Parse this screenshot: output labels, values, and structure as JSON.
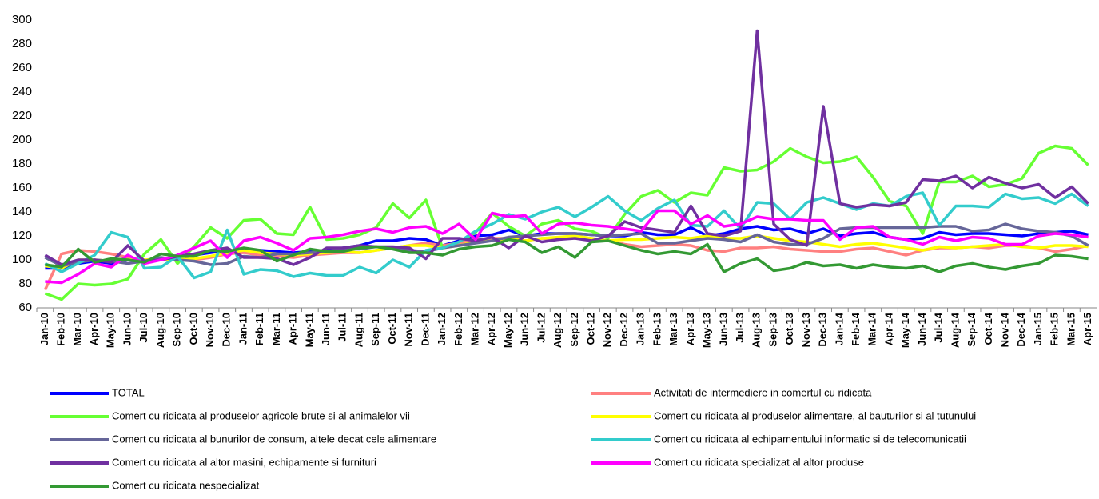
{
  "chart_data": {
    "type": "line",
    "categories": [
      "Jan-10",
      "Feb-10",
      "Mar-10",
      "Apr-10",
      "May-10",
      "Jun-10",
      "Jul-10",
      "Aug-10",
      "Sep-10",
      "Oct-10",
      "Nov-10",
      "Dec-10",
      "Jan-11",
      "Feb-11",
      "Mar-11",
      "Apr-11",
      "May-11",
      "Jun-11",
      "Jul-11",
      "Aug-11",
      "Sep-11",
      "Oct-11",
      "Nov-11",
      "Dec-11",
      "Jan-12",
      "Feb-12",
      "Mar-12",
      "Apr-12",
      "May-12",
      "Jun-12",
      "Jul-12",
      "Aug-12",
      "Sep-12",
      "Oct-12",
      "Nov-12",
      "Dec-12",
      "Jan-13",
      "Feb-13",
      "Mar-13",
      "Apr-13",
      "May-13",
      "Jun-13",
      "Jul-13",
      "Aug-13",
      "Sep-13",
      "Oct-13",
      "Nov-13",
      "Dec-13",
      "Jan-14",
      "Feb-14",
      "Mar-14",
      "Apr-14",
      "May-14",
      "Jun-14",
      "Jul-14",
      "Aug-14",
      "Sep-14",
      "Oct-14",
      "Nov-14",
      "Dec-14",
      "Jan-15",
      "Feb-15",
      "Mar-15",
      "Apr-15"
    ],
    "series": [
      {
        "name": "TOTAL",
        "color": "#0000ff",
        "values": [
          93,
          93,
          97,
          99,
          97,
          100,
          99,
          101,
          101,
          104,
          106,
          108,
          107,
          108,
          107,
          106,
          107,
          108,
          110,
          112,
          116,
          116,
          118,
          117,
          112,
          116,
          120,
          121,
          125,
          120,
          122,
          122,
          122,
          121,
          120,
          120,
          123,
          121,
          121,
          127,
          120,
          122,
          126,
          128,
          125,
          126,
          122,
          126,
          120,
          122,
          123,
          119,
          117,
          118,
          123,
          121,
          122,
          122,
          121,
          120,
          122,
          123,
          124,
          121
        ]
      },
      {
        "name": "Activitati de intermediere in comertul cu ridicata",
        "color": "#ff8080",
        "values": [
          75,
          105,
          108,
          107,
          105,
          102,
          100,
          100,
          100,
          100,
          102,
          105,
          106,
          104,
          103,
          102,
          104,
          105,
          106,
          106,
          108,
          110,
          112,
          114,
          112,
          114,
          117,
          118,
          118,
          116,
          118,
          117,
          119,
          117,
          116,
          113,
          111,
          112,
          113,
          112,
          108,
          107,
          110,
          110,
          111,
          109,
          108,
          107,
          107,
          109,
          110,
          107,
          104,
          108,
          110,
          110,
          111,
          110,
          112,
          112,
          110,
          107,
          109,
          112
        ]
      },
      {
        "name": "Comert cu ridicata al produselor agricole brute si al animalelor vii",
        "color": "#66ff33",
        "values": [
          72,
          67,
          80,
          79,
          80,
          84,
          105,
          117,
          97,
          111,
          127,
          118,
          133,
          134,
          122,
          121,
          144,
          117,
          118,
          121,
          127,
          147,
          135,
          150,
          110,
          115,
          123,
          139,
          128,
          120,
          130,
          133,
          126,
          124,
          118,
          138,
          153,
          158,
          148,
          156,
          154,
          177,
          174,
          175,
          182,
          193,
          186,
          181,
          182,
          186,
          169,
          149,
          145,
          122,
          165,
          165,
          170,
          161,
          163,
          168,
          189,
          195,
          193,
          179
        ]
      },
      {
        "name": "Comert cu ridicata al produselor alimentare, al bauturilor si al tutunului",
        "color": "#ffff00",
        "values": [
          95,
          93,
          100,
          100,
          99,
          100,
          100,
          101,
          100,
          101,
          103,
          106,
          108,
          106,
          105,
          104,
          105,
          106,
          107,
          106,
          108,
          110,
          112,
          112,
          110,
          112,
          115,
          116,
          118,
          116,
          118,
          119,
          120,
          118,
          116,
          117,
          117,
          118,
          119,
          118,
          120,
          118,
          118,
          120,
          118,
          116,
          115,
          113,
          111,
          113,
          114,
          112,
          110,
          108,
          111,
          110,
          111,
          112,
          113,
          111,
          110,
          112,
          112,
          111
        ]
      },
      {
        "name": "Comert cu ridicata al bunurilor de consum, altele decat cele alimentare",
        "color": "#666699",
        "values": [
          102,
          95,
          98,
          100,
          99,
          97,
          99,
          102,
          100,
          99,
          96,
          97,
          103,
          102,
          105,
          105,
          106,
          107,
          109,
          109,
          111,
          110,
          108,
          107,
          110,
          112,
          114,
          116,
          119,
          120,
          121,
          122,
          122,
          121,
          120,
          121,
          122,
          114,
          114,
          116,
          118,
          117,
          115,
          121,
          115,
          113,
          113,
          118,
          126,
          127,
          127,
          127,
          127,
          127,
          128,
          128,
          124,
          125,
          130,
          126,
          124,
          123,
          120,
          112
        ]
      },
      {
        "name": "Comert cu ridicata al echipamentului informatic si de telecomunicatii",
        "color": "#33cccc",
        "values": [
          97,
          90,
          97,
          104,
          123,
          119,
          93,
          94,
          103,
          85,
          90,
          125,
          88,
          92,
          91,
          86,
          89,
          87,
          87,
          94,
          89,
          100,
          94,
          108,
          110,
          115,
          124,
          130,
          138,
          134,
          140,
          144,
          136,
          144,
          153,
          141,
          133,
          143,
          150,
          129,
          128,
          141,
          126,
          148,
          147,
          134,
          148,
          152,
          147,
          142,
          147,
          145,
          153,
          156,
          129,
          145,
          145,
          144,
          155,
          151,
          152,
          147,
          155,
          145
        ]
      },
      {
        "name": "Comert cu ridicata al altor masini, echipamente si furnituri",
        "color": "#7030a0",
        "values": [
          104,
          96,
          100,
          100,
          98,
          112,
          99,
          100,
          103,
          105,
          108,
          110,
          102,
          102,
          101,
          96,
          102,
          110,
          110,
          112,
          111,
          111,
          110,
          101,
          118,
          118,
          116,
          119,
          110,
          120,
          115,
          117,
          118,
          116,
          120,
          132,
          127,
          125,
          123,
          145,
          122,
          120,
          124,
          291,
          130,
          117,
          112,
          228,
          147,
          144,
          146,
          145,
          148,
          167,
          166,
          170,
          160,
          169,
          164,
          160,
          163,
          152,
          161,
          147
        ]
      },
      {
        "name": "Comert cu ridicata specializat al altor produse",
        "color": "#ff00ff",
        "values": [
          82,
          81,
          88,
          97,
          94,
          104,
          97,
          100,
          104,
          110,
          116,
          102,
          116,
          119,
          114,
          108,
          118,
          119,
          121,
          124,
          126,
          123,
          127,
          128,
          122,
          130,
          117,
          139,
          136,
          137,
          122,
          130,
          131,
          129,
          128,
          126,
          124,
          141,
          141,
          130,
          137,
          128,
          130,
          136,
          134,
          134,
          133,
          133,
          117,
          127,
          128,
          119,
          117,
          113,
          119,
          116,
          119,
          118,
          113,
          113,
          120,
          122,
          121,
          119
        ]
      },
      {
        "name": "Comert cu ridicata nespecializat",
        "color": "#339933",
        "values": [
          96,
          94,
          109,
          98,
          101,
          100,
          98,
          105,
          103,
          103,
          108,
          107,
          110,
          108,
          99,
          104,
          109,
          107,
          107,
          110,
          111,
          109,
          106,
          106,
          104,
          109,
          111,
          112,
          117,
          115,
          106,
          111,
          102,
          115,
          116,
          112,
          108,
          105,
          107,
          105,
          113,
          90,
          97,
          101,
          91,
          93,
          98,
          95,
          96,
          93,
          96,
          94,
          93,
          95,
          90,
          95,
          97,
          94,
          92,
          95,
          97,
          104,
          103,
          101
        ]
      }
    ],
    "ylim": [
      60,
      300
    ],
    "yticks": [
      60,
      80,
      100,
      120,
      140,
      160,
      180,
      200,
      220,
      240,
      260,
      280,
      300
    ],
    "grid": false
  }
}
